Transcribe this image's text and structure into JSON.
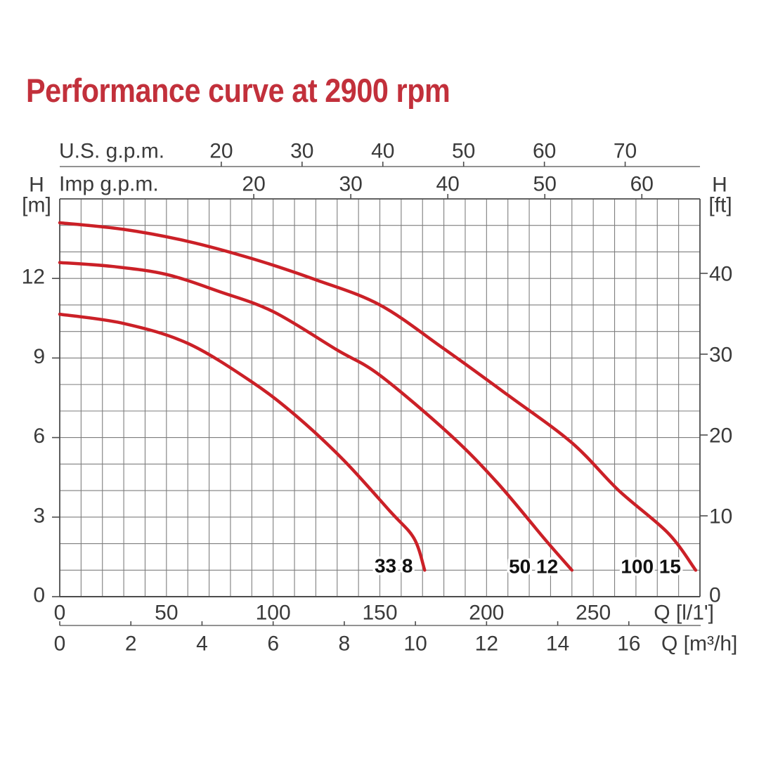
{
  "title": "Performance curve at 2900 rpm",
  "colors": {
    "title_red": "#c2303b",
    "curve_red": "#cb2027",
    "grid_gray": "#7e7e7e",
    "border_dark": "#4c4c4c",
    "secondary_axis_gray": "#6e6e6e",
    "text_dark": "#3a3a3a",
    "curve_label_black": "#111111"
  },
  "chart_data": {
    "type": "line",
    "title": "Performance curve at 2900 rpm",
    "x_range_lmin": [
      0,
      300
    ],
    "y_range_m": [
      0,
      15
    ],
    "grid": {
      "on": true,
      "x_step_lmin": 10,
      "y_step_m": 1
    },
    "axes": {
      "top_outer": {
        "label": "U.S. g.p.m.",
        "ticks": [
          20,
          30,
          40,
          50,
          60,
          70
        ],
        "lmin_per_unit": 3.785
      },
      "top_inner": {
        "label": "Imp g.p.m.",
        "ticks": [
          20,
          30,
          40,
          50,
          60
        ],
        "lmin_per_unit": 4.546
      },
      "bottom_inner": {
        "label": "Q [l/1']",
        "ticks": [
          0,
          50,
          100,
          150,
          200,
          250
        ],
        "lmin_per_unit": 1
      },
      "bottom_outer": {
        "label": "Q [m³/h]",
        "ticks": [
          0,
          2,
          4,
          6,
          8,
          10,
          12,
          14,
          16
        ],
        "lmin_per_unit": 16.6667
      },
      "left": {
        "label": "H",
        "unit": "[m]",
        "ticks": [
          0,
          3,
          6,
          9,
          12
        ],
        "m_per_unit": 1
      },
      "right": {
        "label": "H",
        "unit": "[ft]",
        "ticks": [
          0,
          10,
          20,
          30,
          40
        ],
        "m_per_unit": 0.3048
      }
    },
    "series": [
      {
        "name": "33 8",
        "label_at": [
          156.5,
          1.17
        ],
        "points": [
          [
            0,
            10.65
          ],
          [
            30,
            10.3
          ],
          [
            60,
            9.55
          ],
          [
            90,
            8.1
          ],
          [
            111,
            6.8
          ],
          [
            133,
            5.15
          ],
          [
            155,
            3.2
          ],
          [
            166,
            2.2
          ],
          [
            171,
            1.0
          ]
        ]
      },
      {
        "name": "50 12",
        "label_at": [
          222,
          1.15
        ],
        "points": [
          [
            0,
            12.6
          ],
          [
            25,
            12.45
          ],
          [
            50,
            12.15
          ],
          [
            75,
            11.5
          ],
          [
            100,
            10.75
          ],
          [
            130,
            9.3
          ],
          [
            150,
            8.35
          ],
          [
            183,
            6.1
          ],
          [
            205,
            4.3
          ],
          [
            228,
            2.1
          ],
          [
            240,
            1.0
          ]
        ]
      },
      {
        "name": "100 15",
        "label_at": [
          277,
          1.15
        ],
        "points": [
          [
            0,
            14.1
          ],
          [
            30,
            13.85
          ],
          [
            60,
            13.4
          ],
          [
            90,
            12.75
          ],
          [
            120,
            11.95
          ],
          [
            150,
            11.0
          ],
          [
            180,
            9.35
          ],
          [
            210,
            7.6
          ],
          [
            240,
            5.8
          ],
          [
            262,
            4.0
          ],
          [
            285,
            2.4
          ],
          [
            298,
            1.0
          ]
        ]
      }
    ]
  }
}
